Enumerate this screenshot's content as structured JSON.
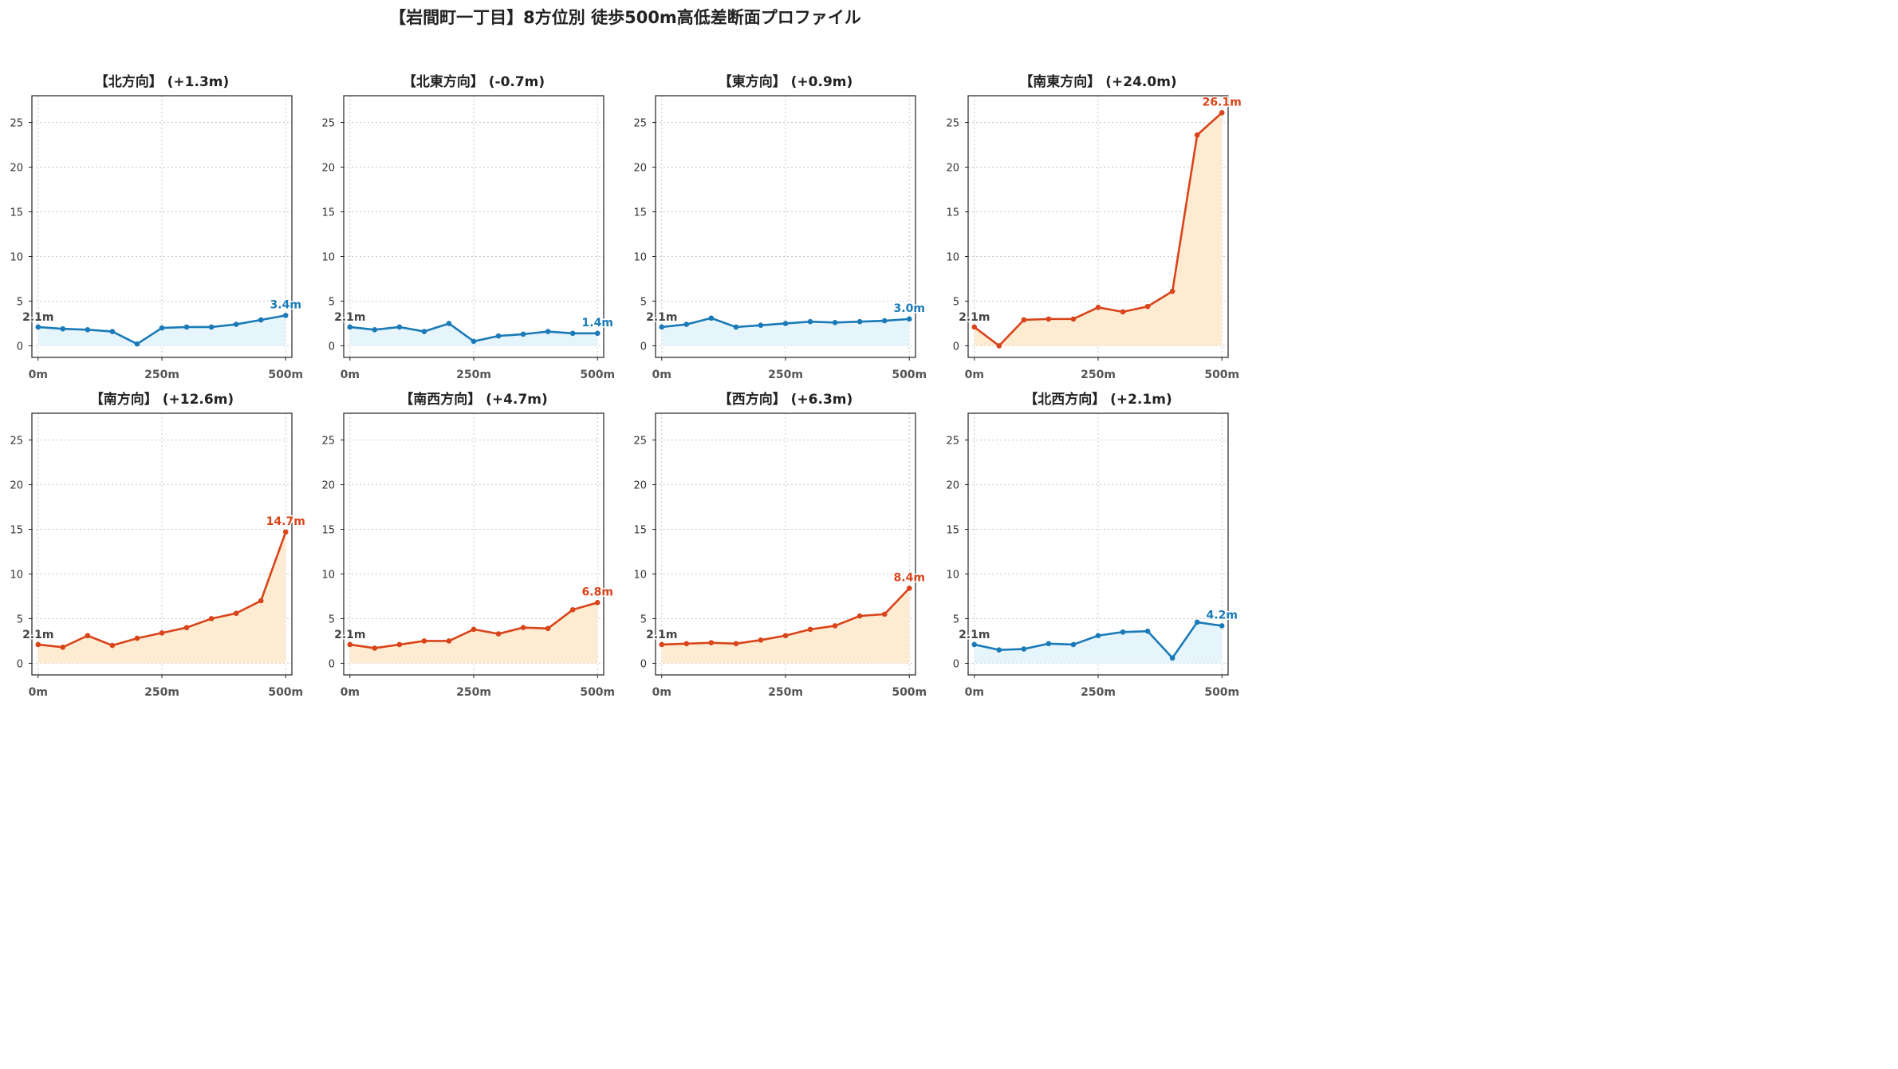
{
  "title": "【岩間町一丁目】8方位別 徒歩500m高低差断面プロファイル",
  "colors": {
    "up": "#d9441a",
    "down": "#1a7ab8",
    "up_fill": "#fdebd2",
    "down_fill": "#e6f4fb"
  },
  "chart_data": [
    {
      "type": "area",
      "title": "【北方向】 (+1.3m)",
      "trend": "down",
      "x": [
        0,
        50,
        100,
        150,
        200,
        250,
        300,
        350,
        400,
        450,
        500
      ],
      "y": [
        2.1,
        1.9,
        1.8,
        1.6,
        0.2,
        2.0,
        2.1,
        2.1,
        2.4,
        2.9,
        3.4
      ],
      "start_label": "2.1m",
      "end_label": "3.4m",
      "xticks": [
        "0m",
        "250m",
        "500m"
      ],
      "yticks": [
        0,
        5,
        10,
        15,
        20,
        25
      ],
      "ylim": [
        -1.3,
        28
      ],
      "grid": true
    },
    {
      "type": "area",
      "title": "【北東方向】 (-0.7m)",
      "trend": "down",
      "x": [
        0,
        50,
        100,
        150,
        200,
        250,
        300,
        350,
        400,
        450,
        500
      ],
      "y": [
        2.1,
        1.8,
        2.1,
        1.6,
        2.5,
        0.5,
        1.1,
        1.3,
        1.6,
        1.4,
        1.4
      ],
      "start_label": "2.1m",
      "end_label": "1.4m",
      "xticks": [
        "0m",
        "250m",
        "500m"
      ],
      "yticks": [
        0,
        5,
        10,
        15,
        20,
        25
      ],
      "ylim": [
        -1.3,
        28
      ],
      "grid": true
    },
    {
      "type": "area",
      "title": "【東方向】 (+0.9m)",
      "trend": "down",
      "x": [
        0,
        50,
        100,
        150,
        200,
        250,
        300,
        350,
        400,
        450,
        500
      ],
      "y": [
        2.1,
        2.4,
        3.1,
        2.1,
        2.3,
        2.5,
        2.7,
        2.6,
        2.7,
        2.8,
        3.0
      ],
      "start_label": "2.1m",
      "end_label": "3.0m",
      "xticks": [
        "0m",
        "250m",
        "500m"
      ],
      "yticks": [
        0,
        5,
        10,
        15,
        20,
        25
      ],
      "ylim": [
        -1.3,
        28
      ],
      "grid": true
    },
    {
      "type": "area",
      "title": "【南東方向】 (+24.0m)",
      "trend": "up",
      "x": [
        0,
        50,
        100,
        150,
        200,
        250,
        300,
        350,
        400,
        450,
        500
      ],
      "y": [
        2.1,
        0.0,
        2.9,
        3.0,
        3.0,
        4.3,
        3.8,
        4.4,
        6.1,
        23.6,
        26.1
      ],
      "start_label": "2.1m",
      "end_label": "26.1m",
      "xticks": [
        "0m",
        "250m",
        "500m"
      ],
      "yticks": [
        0,
        5,
        10,
        15,
        20,
        25
      ],
      "ylim": [
        -1.3,
        28
      ],
      "grid": true
    },
    {
      "type": "area",
      "title": "【南方向】 (+12.6m)",
      "trend": "up",
      "x": [
        0,
        50,
        100,
        150,
        200,
        250,
        300,
        350,
        400,
        450,
        500
      ],
      "y": [
        2.1,
        1.8,
        3.1,
        2.0,
        2.8,
        3.4,
        4.0,
        5.0,
        5.6,
        7.0,
        14.7
      ],
      "start_label": "2.1m",
      "end_label": "14.7m",
      "xticks": [
        "0m",
        "250m",
        "500m"
      ],
      "yticks": [
        0,
        5,
        10,
        15,
        20,
        25
      ],
      "ylim": [
        -1.3,
        28
      ],
      "grid": true
    },
    {
      "type": "area",
      "title": "【南西方向】 (+4.7m)",
      "trend": "up",
      "x": [
        0,
        50,
        100,
        150,
        200,
        250,
        300,
        350,
        400,
        450,
        500
      ],
      "y": [
        2.1,
        1.7,
        2.1,
        2.5,
        2.5,
        3.8,
        3.3,
        4.0,
        3.9,
        6.0,
        6.8
      ],
      "start_label": "2.1m",
      "end_label": "6.8m",
      "xticks": [
        "0m",
        "250m",
        "500m"
      ],
      "yticks": [
        0,
        5,
        10,
        15,
        20,
        25
      ],
      "ylim": [
        -1.3,
        28
      ],
      "grid": true
    },
    {
      "type": "area",
      "title": "【西方向】 (+6.3m)",
      "trend": "up",
      "x": [
        0,
        50,
        100,
        150,
        200,
        250,
        300,
        350,
        400,
        450,
        500
      ],
      "y": [
        2.1,
        2.2,
        2.3,
        2.2,
        2.6,
        3.1,
        3.8,
        4.2,
        5.3,
        5.5,
        8.4
      ],
      "start_label": "2.1m",
      "end_label": "8.4m",
      "xticks": [
        "0m",
        "250m",
        "500m"
      ],
      "yticks": [
        0,
        5,
        10,
        15,
        20,
        25
      ],
      "ylim": [
        -1.3,
        28
      ],
      "grid": true
    },
    {
      "type": "area",
      "title": "【北西方向】 (+2.1m)",
      "trend": "down",
      "x": [
        0,
        50,
        100,
        150,
        200,
        250,
        300,
        350,
        400,
        450,
        500
      ],
      "y": [
        2.1,
        1.5,
        1.6,
        2.2,
        2.1,
        3.1,
        3.5,
        3.6,
        0.6,
        4.6,
        4.2
      ],
      "start_label": "2.1m",
      "end_label": "4.2m",
      "xticks": [
        "0m",
        "250m",
        "500m"
      ],
      "yticks": [
        0,
        5,
        10,
        15,
        20,
        25
      ],
      "ylim": [
        -1.3,
        28
      ],
      "grid": true
    }
  ]
}
